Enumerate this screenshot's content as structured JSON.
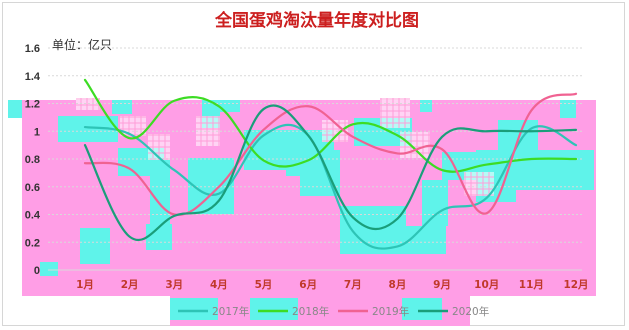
{
  "chart_data": {
    "type": "line",
    "title": "全国蛋鸡淘汰量年度对比图",
    "unit_label": "单位：亿只",
    "xlabel": "",
    "ylabel": "",
    "categories": [
      "1月",
      "2月",
      "3月",
      "4月",
      "5月",
      "6月",
      "7月",
      "8月",
      "9月",
      "10月",
      "11月",
      "12月"
    ],
    "y_ticks": [
      "0",
      "0.2",
      "0.4",
      "0.6",
      "0.8",
      "1",
      "1.2",
      "1.4",
      "1.6"
    ],
    "ylim": [
      0,
      1.6
    ],
    "grid": true,
    "legend_position": "bottom",
    "series": [
      {
        "name": "2017年",
        "color": "#2ec4b6",
        "values": [
          1.03,
          0.98,
          0.72,
          0.55,
          0.97,
          0.97,
          0.28,
          0.17,
          0.43,
          0.52,
          1.02,
          0.9
        ]
      },
      {
        "name": "2018年",
        "color": "#3ddc24",
        "values": [
          1.37,
          0.95,
          1.22,
          1.18,
          0.79,
          0.79,
          1.05,
          0.97,
          0.72,
          0.76,
          0.8,
          0.8
        ]
      },
      {
        "name": "2019年",
        "color": "#f06292",
        "values": [
          0.77,
          0.73,
          0.4,
          0.6,
          1.01,
          1.18,
          0.96,
          0.84,
          0.87,
          0.41,
          1.15,
          1.27
        ]
      },
      {
        "name": "2020年",
        "color": "#1a9e7a",
        "values": [
          0.9,
          0.24,
          0.39,
          0.5,
          1.16,
          0.97,
          0.38,
          0.37,
          0.96,
          1.0,
          1.0,
          1.01
        ]
      }
    ]
  }
}
